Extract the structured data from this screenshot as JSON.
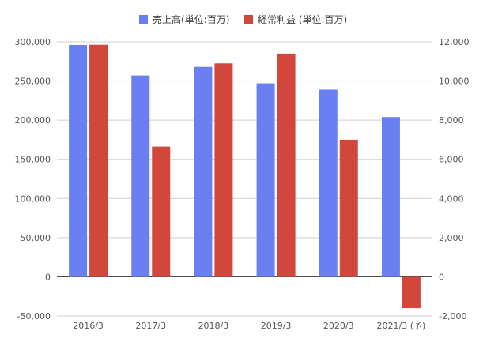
{
  "chart_data": {
    "type": "bar",
    "categories": [
      "2016/3",
      "2017/3",
      "2018/3",
      "2019/3",
      "2020/3",
      "2021/3 (予)"
    ],
    "series": [
      {
        "name": "売上高(単位:百万)",
        "axis": "left",
        "color": "#6a7ff2",
        "values": [
          296000,
          257000,
          268000,
          247000,
          239000,
          204000
        ]
      },
      {
        "name": "経常利益 (単位:百万)",
        "axis": "right",
        "color": "#d1473c",
        "values": [
          11850,
          6650,
          10900,
          11400,
          7000,
          -1600
        ]
      }
    ],
    "y_left": {
      "range": [
        -50000,
        300000
      ],
      "ticks": [
        "300,000",
        "250,000",
        "200,000",
        "150,000",
        "100,000",
        "50,000",
        "0",
        "-50,000"
      ],
      "tick_values": [
        300000,
        250000,
        200000,
        150000,
        100000,
        50000,
        0,
        -50000
      ]
    },
    "y_right": {
      "range": [
        -2000,
        12000
      ],
      "ticks": [
        "12,000",
        "10,000",
        "8,000",
        "6,000",
        "4,000",
        "2,000",
        "0",
        "-2,000"
      ],
      "tick_values": [
        12000,
        10000,
        8000,
        6000,
        4000,
        2000,
        0,
        -2000
      ]
    },
    "grid": true,
    "legend_position": "top-center",
    "title": "",
    "xlabel": "",
    "ylabel": ""
  }
}
